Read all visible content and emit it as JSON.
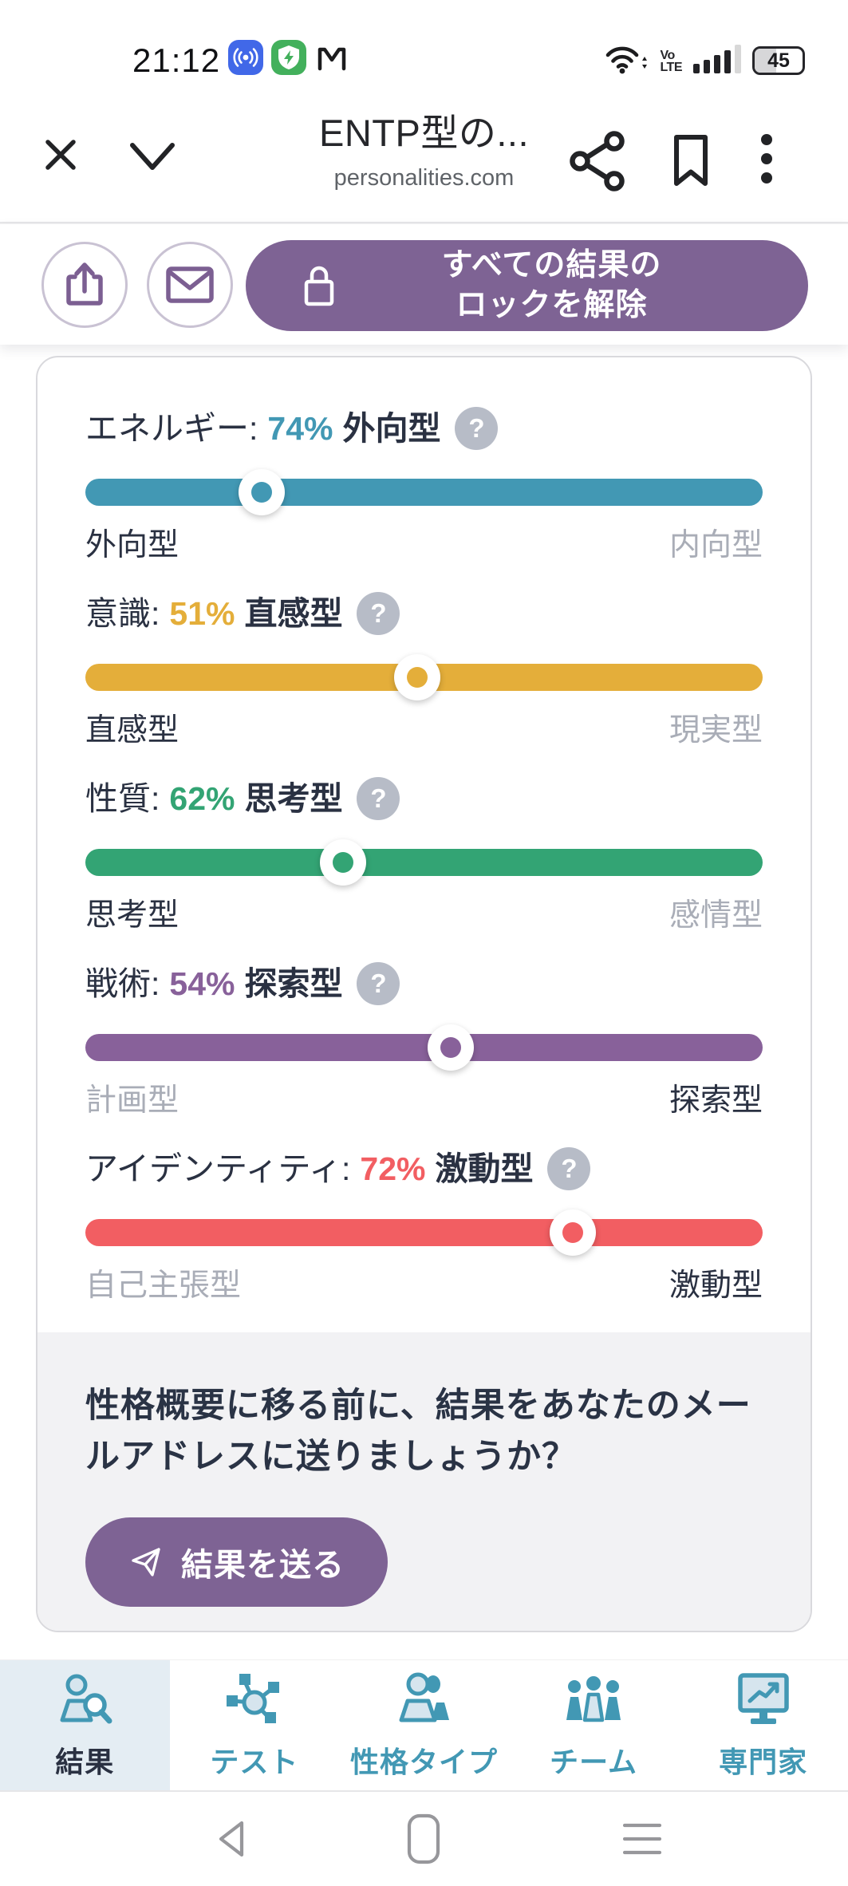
{
  "status_bar": {
    "time": "21:12",
    "volte_top": "Vo",
    "volte_bottom": "LTE",
    "battery_level": "45"
  },
  "browser_header": {
    "page_title": "ENTP型の...",
    "page_url": "personalities.com"
  },
  "action_bar": {
    "unlock_button": {
      "line1": "すべての結果の",
      "line2": "ロックを解除"
    }
  },
  "results_card": {
    "question_badge": "?",
    "traits": [
      {
        "category": "エネルギー:",
        "percent": "74%",
        "trait": "外向型",
        "left_label": "外向型",
        "right_label": "内向型",
        "color": "#4298B4",
        "handle_percent": 26,
        "dominant_side": "left"
      },
      {
        "category": "意識:",
        "percent": "51%",
        "trait": "直感型",
        "left_label": "直感型",
        "right_label": "現実型",
        "color": "#E4AE3A",
        "handle_percent": 49,
        "dominant_side": "left"
      },
      {
        "category": "性質:",
        "percent": "62%",
        "trait": "思考型",
        "left_label": "思考型",
        "right_label": "感情型",
        "color": "#33A474",
        "handle_percent": 38,
        "dominant_side": "left"
      },
      {
        "category": "戦術:",
        "percent": "54%",
        "trait": "探索型",
        "left_label": "計画型",
        "right_label": "探索型",
        "color": "#88619A",
        "handle_percent": 54,
        "dominant_side": "right"
      },
      {
        "category": "アイデンティティ:",
        "percent": "72%",
        "trait": "激動型",
        "left_label": "自己主張型",
        "right_label": "激動型",
        "color": "#F25E62",
        "handle_percent": 72,
        "dominant_side": "right"
      }
    ],
    "email_prompt": {
      "message": "性格概要に移る前に、結果をあなたのメールアドレスに送りましょうか？",
      "send_button_label": "結果を送る"
    }
  },
  "bottom_nav": {
    "items": [
      {
        "label": "結果",
        "active": true
      },
      {
        "label": "テスト",
        "active": false
      },
      {
        "label": "性格タイプ",
        "active": false
      },
      {
        "label": "チーム",
        "active": false
      },
      {
        "label": "専門家",
        "active": false
      }
    ]
  },
  "colors": {
    "accent_purple": "#7E6394",
    "nav_teal": "#4298B4"
  }
}
